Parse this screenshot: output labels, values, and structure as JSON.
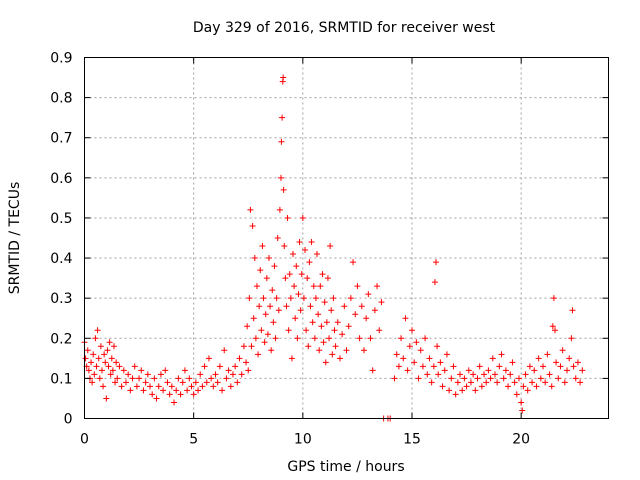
{
  "chart_data": {
    "type": "scatter",
    "title": "Day 329 of 2016, SRMTID for receiver west",
    "xlabel": "GPS time / hours",
    "ylabel": "SRMTID / TECUs",
    "xlim": [
      0,
      24
    ],
    "ylim": [
      0,
      0.9
    ],
    "xticks": [
      0,
      5,
      10,
      15,
      20
    ],
    "xtick_labels": [
      "0",
      "5",
      "10",
      "15",
      "20"
    ],
    "yticks": [
      0,
      0.1,
      0.2,
      0.3,
      0.4,
      0.5,
      0.6,
      0.7,
      0.8,
      0.9
    ],
    "ytick_labels": [
      "0",
      "0.1",
      "0.2",
      "0.3",
      "0.4",
      "0.5",
      "0.6",
      "0.7",
      "0.8",
      "0.9"
    ],
    "grid": true,
    "marker": "+",
    "color": "#ff0000",
    "series": [
      {
        "name": "receiver west",
        "points": [
          [
            0.0,
            0.19
          ],
          [
            0.05,
            0.15
          ],
          [
            0.1,
            0.13
          ],
          [
            0.15,
            0.17
          ],
          [
            0.2,
            0.12
          ],
          [
            0.25,
            0.1
          ],
          [
            0.3,
            0.14
          ],
          [
            0.35,
            0.09
          ],
          [
            0.4,
            0.16
          ],
          [
            0.45,
            0.11
          ],
          [
            0.5,
            0.2
          ],
          [
            0.55,
            0.13
          ],
          [
            0.6,
            0.22
          ],
          [
            0.65,
            0.15
          ],
          [
            0.7,
            0.1
          ],
          [
            0.75,
            0.18
          ],
          [
            0.8,
            0.12
          ],
          [
            0.85,
            0.08
          ],
          [
            0.9,
            0.16
          ],
          [
            0.95,
            0.14
          ],
          [
            1.0,
            0.05
          ],
          [
            1.05,
            0.17
          ],
          [
            1.1,
            0.13
          ],
          [
            1.15,
            0.19
          ],
          [
            1.2,
            0.11
          ],
          [
            1.25,
            0.15
          ],
          [
            1.3,
            0.12
          ],
          [
            1.35,
            0.18
          ],
          [
            1.4,
            0.09
          ],
          [
            1.45,
            0.14
          ],
          [
            1.5,
            0.1
          ],
          [
            1.6,
            0.13
          ],
          [
            1.7,
            0.08
          ],
          [
            1.8,
            0.12
          ],
          [
            1.9,
            0.09
          ],
          [
            2.0,
            0.11
          ],
          [
            2.1,
            0.07
          ],
          [
            2.2,
            0.1
          ],
          [
            2.3,
            0.13
          ],
          [
            2.4,
            0.08
          ],
          [
            2.5,
            0.1
          ],
          [
            2.6,
            0.12
          ],
          [
            2.7,
            0.07
          ],
          [
            2.8,
            0.09
          ],
          [
            2.9,
            0.11
          ],
          [
            3.0,
            0.08
          ],
          [
            3.1,
            0.06
          ],
          [
            3.2,
            0.1
          ],
          [
            3.3,
            0.05
          ],
          [
            3.4,
            0.08
          ],
          [
            3.5,
            0.11
          ],
          [
            3.6,
            0.07
          ],
          [
            3.7,
            0.12
          ],
          [
            3.8,
            0.09
          ],
          [
            3.9,
            0.06
          ],
          [
            4.0,
            0.08
          ],
          [
            4.1,
            0.04
          ],
          [
            4.2,
            0.07
          ],
          [
            4.3,
            0.1
          ],
          [
            4.4,
            0.06
          ],
          [
            4.5,
            0.09
          ],
          [
            4.6,
            0.12
          ],
          [
            4.7,
            0.07
          ],
          [
            4.8,
            0.1
          ],
          [
            4.9,
            0.08
          ],
          [
            5.0,
            0.06
          ],
          [
            5.1,
            0.09
          ],
          [
            5.2,
            0.07
          ],
          [
            5.3,
            0.11
          ],
          [
            5.4,
            0.08
          ],
          [
            5.5,
            0.13
          ],
          [
            5.6,
            0.09
          ],
          [
            5.7,
            0.15
          ],
          [
            5.8,
            0.1
          ],
          [
            5.9,
            0.08
          ],
          [
            6.0,
            0.11
          ],
          [
            6.1,
            0.09
          ],
          [
            6.2,
            0.13
          ],
          [
            6.3,
            0.07
          ],
          [
            6.4,
            0.17
          ],
          [
            6.5,
            0.1
          ],
          [
            6.6,
            0.12
          ],
          [
            6.7,
            0.08
          ],
          [
            6.8,
            0.11
          ],
          [
            6.9,
            0.13
          ],
          [
            7.0,
            0.09
          ],
          [
            7.1,
            0.15
          ],
          [
            7.2,
            0.11
          ],
          [
            7.3,
            0.18
          ],
          [
            7.4,
            0.14
          ],
          [
            7.45,
            0.23
          ],
          [
            7.5,
            0.12
          ],
          [
            7.55,
            0.3
          ],
          [
            7.6,
            0.52
          ],
          [
            7.65,
            0.18
          ],
          [
            7.7,
            0.48
          ],
          [
            7.75,
            0.25
          ],
          [
            7.8,
            0.4
          ],
          [
            7.85,
            0.2
          ],
          [
            7.9,
            0.33
          ],
          [
            7.95,
            0.16
          ],
          [
            8.0,
            0.28
          ],
          [
            8.05,
            0.37
          ],
          [
            8.1,
            0.22
          ],
          [
            8.15,
            0.43
          ],
          [
            8.2,
            0.3
          ],
          [
            8.25,
            0.19
          ],
          [
            8.3,
            0.26
          ],
          [
            8.35,
            0.35
          ],
          [
            8.4,
            0.21
          ],
          [
            8.45,
            0.4
          ],
          [
            8.5,
            0.28
          ],
          [
            8.55,
            0.17
          ],
          [
            8.6,
            0.32
          ],
          [
            8.65,
            0.24
          ],
          [
            8.7,
            0.38
          ],
          [
            8.75,
            0.2
          ],
          [
            8.8,
            0.3
          ],
          [
            8.85,
            0.45
          ],
          [
            8.9,
            0.27
          ],
          [
            8.95,
            0.52
          ],
          [
            9.0,
            0.6
          ],
          [
            9.02,
            0.69
          ],
          [
            9.05,
            0.75
          ],
          [
            9.08,
            0.84
          ],
          [
            9.1,
            0.85
          ],
          [
            9.12,
            0.57
          ],
          [
            9.15,
            0.43
          ],
          [
            9.2,
            0.35
          ],
          [
            9.25,
            0.28
          ],
          [
            9.3,
            0.5
          ],
          [
            9.35,
            0.22
          ],
          [
            9.4,
            0.36
          ],
          [
            9.45,
            0.3
          ],
          [
            9.5,
            0.15
          ],
          [
            9.55,
            0.41
          ],
          [
            9.6,
            0.33
          ],
          [
            9.65,
            0.25
          ],
          [
            9.7,
            0.38
          ],
          [
            9.75,
            0.2
          ],
          [
            9.8,
            0.31
          ],
          [
            9.85,
            0.44
          ],
          [
            9.9,
            0.27
          ],
          [
            9.95,
            0.36
          ],
          [
            10.0,
            0.5
          ],
          [
            10.05,
            0.3
          ],
          [
            10.1,
            0.42
          ],
          [
            10.15,
            0.22
          ],
          [
            10.2,
            0.35
          ],
          [
            10.25,
            0.18
          ],
          [
            10.3,
            0.39
          ],
          [
            10.35,
            0.28
          ],
          [
            10.4,
            0.44
          ],
          [
            10.45,
            0.24
          ],
          [
            10.5,
            0.33
          ],
          [
            10.55,
            0.2
          ],
          [
            10.6,
            0.3
          ],
          [
            10.65,
            0.41
          ],
          [
            10.7,
            0.26
          ],
          [
            10.75,
            0.17
          ],
          [
            10.8,
            0.33
          ],
          [
            10.85,
            0.23
          ],
          [
            10.9,
            0.36
          ],
          [
            10.95,
            0.19
          ],
          [
            11.0,
            0.29
          ],
          [
            11.05,
            0.14
          ],
          [
            11.1,
            0.24
          ],
          [
            11.15,
            0.35
          ],
          [
            11.2,
            0.2
          ],
          [
            11.25,
            0.43
          ],
          [
            11.3,
            0.27
          ],
          [
            11.35,
            0.16
          ],
          [
            11.4,
            0.3
          ],
          [
            11.45,
            0.22
          ],
          [
            11.5,
            0.18
          ],
          [
            11.6,
            0.24
          ],
          [
            11.7,
            0.15
          ],
          [
            11.8,
            0.21
          ],
          [
            11.9,
            0.28
          ],
          [
            12.0,
            0.17
          ],
          [
            12.1,
            0.23
          ],
          [
            12.2,
            0.3
          ],
          [
            12.3,
            0.39
          ],
          [
            12.4,
            0.26
          ],
          [
            12.5,
            0.33
          ],
          [
            12.6,
            0.2
          ],
          [
            12.7,
            0.28
          ],
          [
            12.8,
            0.17
          ],
          [
            12.9,
            0.25
          ],
          [
            13.0,
            0.31
          ],
          [
            13.1,
            0.2
          ],
          [
            13.2,
            0.12
          ],
          [
            13.3,
            0.27
          ],
          [
            13.4,
            0.33
          ],
          [
            13.5,
            0.22
          ],
          [
            13.6,
            0.29
          ],
          [
            13.7,
            0.0
          ],
          [
            13.9,
            0.0
          ],
          [
            14.0,
            0.0
          ],
          [
            14.2,
            0.1
          ],
          [
            14.3,
            0.16
          ],
          [
            14.4,
            0.13
          ],
          [
            14.5,
            0.2
          ],
          [
            14.6,
            0.15
          ],
          [
            14.7,
            0.25
          ],
          [
            14.8,
            0.12
          ],
          [
            14.9,
            0.18
          ],
          [
            15.0,
            0.22
          ],
          [
            15.1,
            0.14
          ],
          [
            15.2,
            0.19
          ],
          [
            15.3,
            0.1
          ],
          [
            15.4,
            0.17
          ],
          [
            15.5,
            0.13
          ],
          [
            15.6,
            0.2
          ],
          [
            15.7,
            0.11
          ],
          [
            15.8,
            0.15
          ],
          [
            15.9,
            0.09
          ],
          [
            16.0,
            0.13
          ],
          [
            16.05,
            0.34
          ],
          [
            16.1,
            0.39
          ],
          [
            16.15,
            0.18
          ],
          [
            16.2,
            0.11
          ],
          [
            16.3,
            0.14
          ],
          [
            16.4,
            0.08
          ],
          [
            16.5,
            0.12
          ],
          [
            16.6,
            0.16
          ],
          [
            16.7,
            0.07
          ],
          [
            16.8,
            0.1
          ],
          [
            16.9,
            0.13
          ],
          [
            17.0,
            0.06
          ],
          [
            17.1,
            0.09
          ],
          [
            17.2,
            0.11
          ],
          [
            17.3,
            0.07
          ],
          [
            17.4,
            0.1
          ],
          [
            17.5,
            0.08
          ],
          [
            17.6,
            0.12
          ],
          [
            17.7,
            0.09
          ],
          [
            17.8,
            0.11
          ],
          [
            17.9,
            0.07
          ],
          [
            18.0,
            0.1
          ],
          [
            18.1,
            0.13
          ],
          [
            18.2,
            0.08
          ],
          [
            18.3,
            0.11
          ],
          [
            18.4,
            0.09
          ],
          [
            18.5,
            0.12
          ],
          [
            18.6,
            0.1
          ],
          [
            18.7,
            0.15
          ],
          [
            18.8,
            0.11
          ],
          [
            18.9,
            0.09
          ],
          [
            19.0,
            0.13
          ],
          [
            19.1,
            0.16
          ],
          [
            19.2,
            0.1
          ],
          [
            19.3,
            0.12
          ],
          [
            19.4,
            0.08
          ],
          [
            19.5,
            0.11
          ],
          [
            19.6,
            0.14
          ],
          [
            19.7,
            0.09
          ],
          [
            19.8,
            0.06
          ],
          [
            19.9,
            0.1
          ],
          [
            20.0,
            0.04
          ],
          [
            20.05,
            0.02
          ],
          [
            20.1,
            0.08
          ],
          [
            20.2,
            0.11
          ],
          [
            20.3,
            0.07
          ],
          [
            20.4,
            0.13
          ],
          [
            20.5,
            0.09
          ],
          [
            20.6,
            0.12
          ],
          [
            20.7,
            0.08
          ],
          [
            20.8,
            0.15
          ],
          [
            20.9,
            0.1
          ],
          [
            21.0,
            0.13
          ],
          [
            21.1,
            0.09
          ],
          [
            21.2,
            0.16
          ],
          [
            21.3,
            0.11
          ],
          [
            21.4,
            0.08
          ],
          [
            21.45,
            0.23
          ],
          [
            21.5,
            0.3
          ],
          [
            21.55,
            0.22
          ],
          [
            21.6,
            0.14
          ],
          [
            21.7,
            0.1
          ],
          [
            21.8,
            0.13
          ],
          [
            21.9,
            0.17
          ],
          [
            22.0,
            0.09
          ],
          [
            22.1,
            0.12
          ],
          [
            22.2,
            0.15
          ],
          [
            22.3,
            0.2
          ],
          [
            22.35,
            0.27
          ],
          [
            22.4,
            0.13
          ],
          [
            22.5,
            0.1
          ],
          [
            22.6,
            0.14
          ],
          [
            22.7,
            0.09
          ],
          [
            22.8,
            0.12
          ]
        ]
      }
    ]
  }
}
